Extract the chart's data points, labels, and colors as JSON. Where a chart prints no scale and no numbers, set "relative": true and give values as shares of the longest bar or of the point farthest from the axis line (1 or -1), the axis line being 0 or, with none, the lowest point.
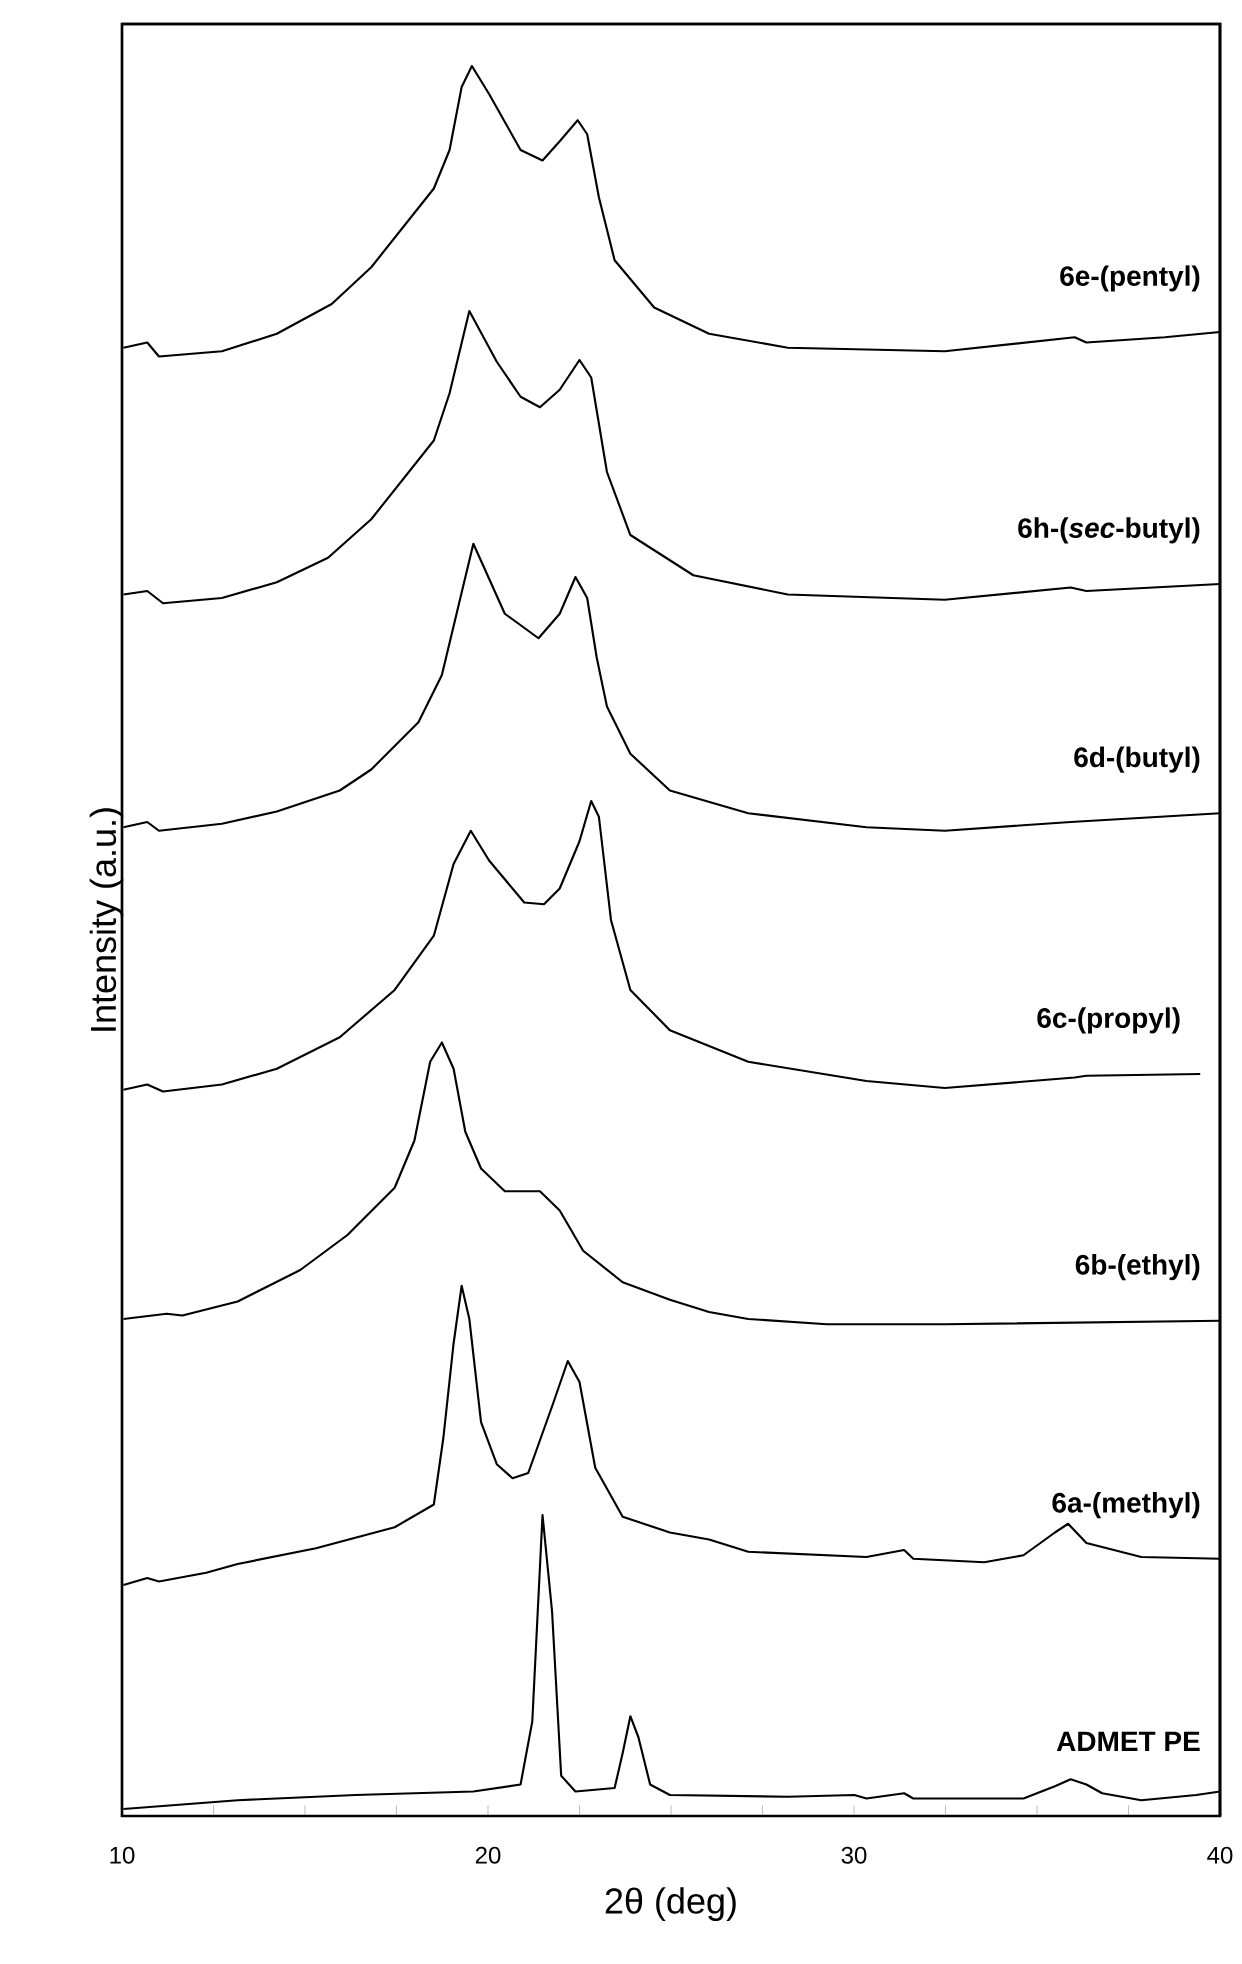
{
  "chart_data": {
    "type": "line",
    "relative": true,
    "xlabel": "2θ (deg)",
    "ylabel": "Intensity (a.u.)",
    "xlim": [
      10,
      40
    ],
    "tick_labels": "x",
    "xticks": [
      10,
      {
        "value": 12.5,
        "label": null
      },
      {
        "value": 15,
        "label": null
      },
      {
        "value": 17.5,
        "label": null
      },
      20,
      {
        "value": 22.5,
        "label": null
      },
      {
        "value": 25,
        "label": null
      },
      {
        "value": 27.5,
        "label": null
      },
      30,
      {
        "value": 32.5,
        "label": null
      },
      {
        "value": 35,
        "label": null
      },
      {
        "value": 37.5,
        "label": null
      },
      40
    ],
    "series": [
      {
        "name": "6e-(pentyl)",
        "color": "#000000",
        "x": [
          10.04,
          10.69,
          11.01,
          12.73,
          14.23,
          15.73,
          16.81,
          18.52,
          18.95,
          19.28,
          19.56,
          20.03,
          20.89,
          21.49,
          21.96,
          22.45,
          22.71,
          23.03,
          23.46,
          24.54,
          26.04,
          28.19,
          32.48,
          36.03,
          36.35,
          38.49,
          40.0
        ],
        "values": [
          0.839,
          0.842,
          0.834,
          0.837,
          0.847,
          0.864,
          0.885,
          0.93,
          0.952,
          0.988,
          1.0,
          0.984,
          0.952,
          0.946,
          0.957,
          0.969,
          0.961,
          0.925,
          0.889,
          0.862,
          0.847,
          0.839,
          0.837,
          0.845,
          0.842,
          0.845,
          0.848
        ]
      },
      {
        "name": "6h-(*sec*-butyl)",
        "color": "#000000",
        "x": [
          10.04,
          10.69,
          11.12,
          12.73,
          14.23,
          15.63,
          16.81,
          18.52,
          18.95,
          19.49,
          20.24,
          20.89,
          21.42,
          21.96,
          22.5,
          22.82,
          23.25,
          23.89,
          25.61,
          28.19,
          32.48,
          35.92,
          36.35,
          40.0
        ],
        "values": [
          0.698,
          0.7,
          0.693,
          0.696,
          0.705,
          0.719,
          0.741,
          0.786,
          0.813,
          0.86,
          0.831,
          0.811,
          0.805,
          0.815,
          0.832,
          0.822,
          0.768,
          0.732,
          0.709,
          0.698,
          0.695,
          0.702,
          0.7,
          0.704
        ]
      },
      {
        "name": "6d-(butyl)",
        "color": "#000000",
        "x": [
          10.04,
          10.69,
          11.01,
          12.73,
          14.23,
          15.95,
          16.81,
          18.1,
          18.74,
          19.6,
          20.46,
          21.38,
          21.96,
          22.39,
          22.71,
          22.97,
          23.25,
          23.89,
          24.97,
          27.11,
          30.34,
          32.48,
          35.92,
          40.0
        ],
        "values": [
          0.565,
          0.568,
          0.563,
          0.567,
          0.574,
          0.586,
          0.598,
          0.625,
          0.652,
          0.727,
          0.687,
          0.673,
          0.687,
          0.708,
          0.696,
          0.662,
          0.634,
          0.607,
          0.586,
          0.573,
          0.565,
          0.563,
          0.568,
          0.573
        ]
      },
      {
        "name": "6c-(propyl)",
        "color": "#000000",
        "x": [
          10.04,
          10.69,
          11.12,
          12.73,
          14.23,
          15.95,
          17.45,
          18.52,
          19.06,
          19.53,
          20.03,
          20.99,
          21.53,
          21.96,
          22.5,
          22.82,
          23.03,
          23.36,
          23.89,
          24.97,
          27.11,
          30.34,
          32.48,
          36.03,
          36.35,
          39.46
        ],
        "values": [
          0.415,
          0.418,
          0.414,
          0.418,
          0.427,
          0.445,
          0.472,
          0.503,
          0.544,
          0.563,
          0.546,
          0.522,
          0.521,
          0.53,
          0.557,
          0.58,
          0.571,
          0.512,
          0.472,
          0.449,
          0.431,
          0.42,
          0.416,
          0.422,
          0.423,
          0.424
        ]
      },
      {
        "name": "6b-(ethyl)",
        "color": "#000000",
        "x": [
          10.04,
          11.22,
          11.65,
          13.16,
          14.87,
          16.16,
          17.45,
          17.99,
          18.42,
          18.74,
          19.06,
          19.38,
          19.81,
          20.46,
          21.42,
          21.96,
          22.6,
          23.68,
          24.97,
          26.04,
          27.11,
          29.26,
          32.48,
          40.0
        ],
        "values": [
          0.284,
          0.287,
          0.286,
          0.294,
          0.312,
          0.332,
          0.359,
          0.386,
          0.431,
          0.442,
          0.427,
          0.391,
          0.37,
          0.357,
          0.357,
          0.346,
          0.323,
          0.305,
          0.295,
          0.288,
          0.284,
          0.281,
          0.281,
          0.283
        ]
      },
      {
        "name": "6a-(methyl)",
        "color": "#000000",
        "x": [
          10.04,
          10.69,
          11.01,
          12.3,
          13.16,
          15.3,
          17.45,
          18.52,
          18.78,
          19.06,
          19.28,
          19.49,
          19.81,
          20.24,
          20.67,
          21.1,
          21.75,
          22.18,
          22.5,
          22.93,
          23.68,
          24.97,
          26.04,
          27.11,
          30.34,
          31.37,
          31.62,
          33.56,
          34.63,
          35.49,
          35.85,
          36.35,
          37.85,
          40.0
        ],
        "values": [
          0.132,
          0.136,
          0.134,
          0.139,
          0.144,
          0.153,
          0.165,
          0.178,
          0.216,
          0.27,
          0.303,
          0.284,
          0.225,
          0.201,
          0.193,
          0.196,
          0.234,
          0.26,
          0.248,
          0.199,
          0.171,
          0.162,
          0.158,
          0.151,
          0.148,
          0.152,
          0.147,
          0.145,
          0.149,
          0.162,
          0.167,
          0.156,
          0.148,
          0.147
        ]
      },
      {
        "name": "ADMET PE",
        "color": "#000000",
        "x": [
          10.04,
          13.16,
          16.38,
          19.6,
          20.89,
          21.21,
          21.49,
          21.75,
          22.0,
          22.39,
          23.46,
          23.68,
          23.89,
          24.11,
          24.43,
          24.97,
          28.19,
          30.01,
          30.34,
          31.37,
          31.62,
          34.63,
          35.49,
          35.92,
          36.35,
          36.78,
          37.85,
          39.35,
          40.0
        ],
        "values": [
          0.004,
          0.009,
          0.012,
          0.014,
          0.018,
          0.054,
          0.172,
          0.117,
          0.023,
          0.014,
          0.016,
          0.036,
          0.057,
          0.045,
          0.018,
          0.012,
          0.011,
          0.012,
          0.01,
          0.013,
          0.01,
          0.01,
          0.017,
          0.021,
          0.018,
          0.013,
          0.009,
          0.012,
          0.014
        ]
      }
    ]
  }
}
